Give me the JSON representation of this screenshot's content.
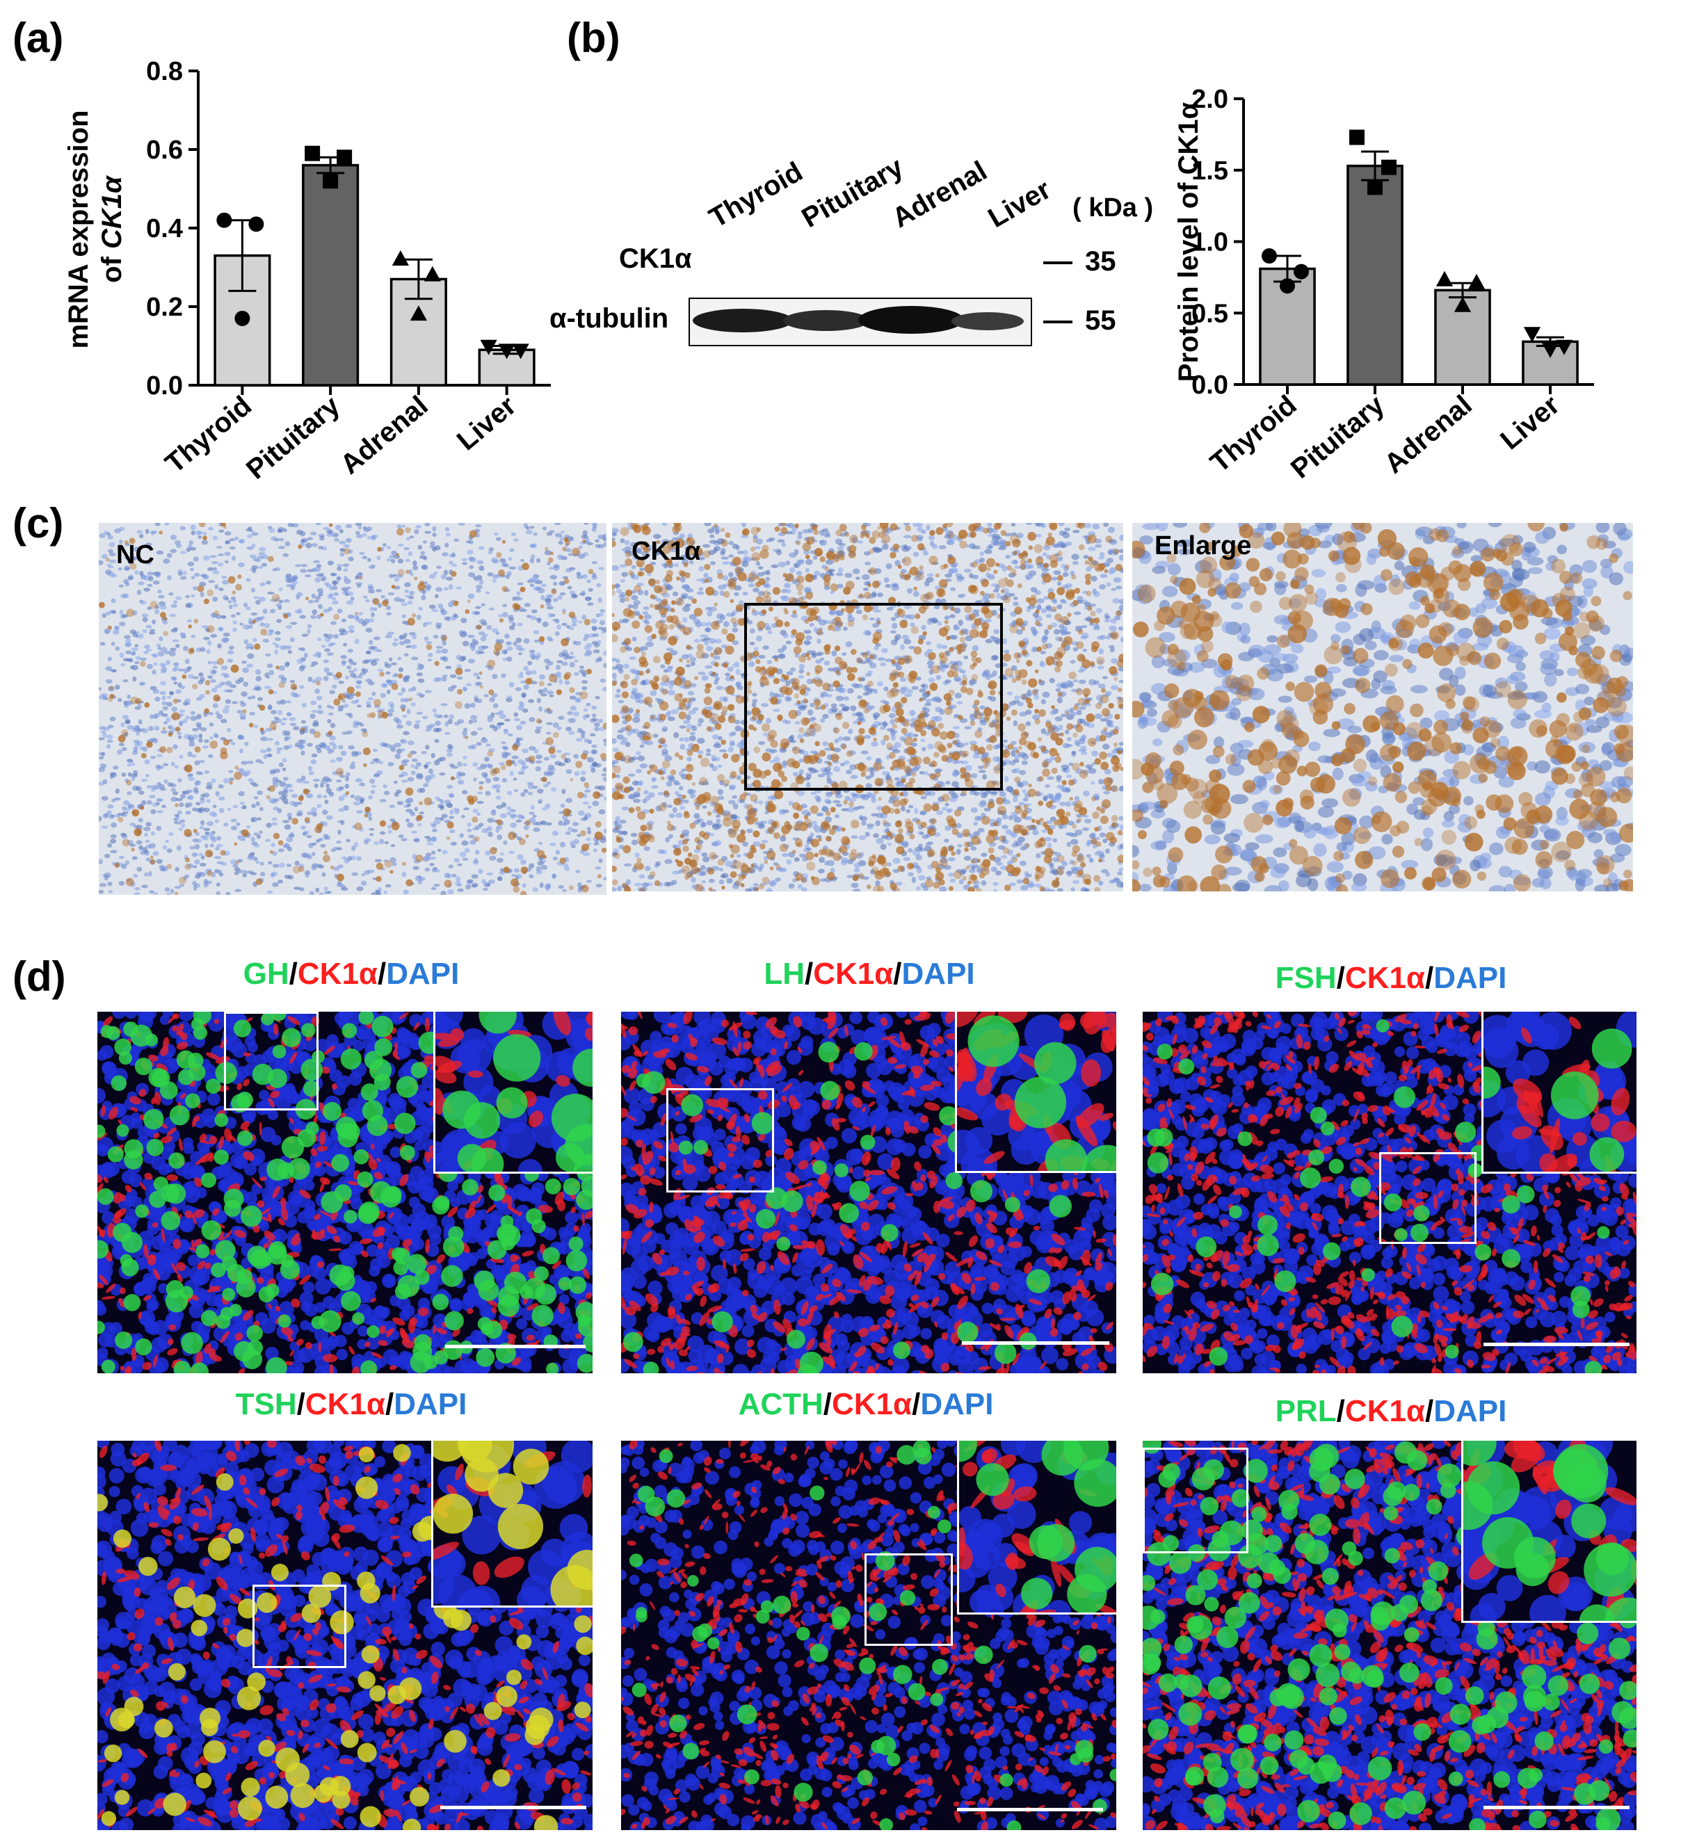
{
  "panels": {
    "a": {
      "letter": "(a)",
      "chart_data": {
        "type": "bar",
        "categories": [
          "Thyroid",
          "Pituitary",
          "Adrenal",
          "Liver"
        ],
        "values": [
          0.33,
          0.56,
          0.27,
          0.09
        ],
        "errors": [
          0.09,
          0.02,
          0.05,
          0.01
        ],
        "points": [
          [
            0.42,
            0.41,
            0.17
          ],
          [
            0.59,
            0.58,
            0.52
          ],
          [
            0.32,
            0.28,
            0.18
          ],
          [
            0.1,
            0.09,
            0.09
          ]
        ],
        "point_markers": [
          "circle",
          "square",
          "triangle",
          "triangle-down"
        ],
        "bar_colors": [
          "#d3d3d3",
          "#636363",
          "#d3d3d3",
          "#d3d3d3"
        ],
        "ylabel_line1": "mRNA expression",
        "ylabel_line2_prefix": "of ",
        "ylabel_line2_italic": "CK1α",
        "ylim": [
          0,
          0.8
        ],
        "yticks": [
          "0.0",
          "0.2",
          "0.4",
          "0.6",
          "0.8"
        ],
        "grid": false
      }
    },
    "b": {
      "letter": "(b)",
      "blot": {
        "lanes": [
          "Thyroid",
          "Pituitary",
          "Adrenal",
          "Liver"
        ],
        "unit": "( kDa )",
        "rows": [
          {
            "label": "CK1α",
            "marker": "35"
          },
          {
            "label": "α-tubulin",
            "marker": "55"
          }
        ]
      },
      "chart_data": {
        "type": "bar",
        "categories": [
          "Thyroid",
          "Pituitary",
          "Adrenal",
          "Liver"
        ],
        "values": [
          0.81,
          1.53,
          0.66,
          0.3
        ],
        "errors": [
          0.09,
          0.1,
          0.05,
          0.03
        ],
        "points": [
          [
            0.9,
            0.79,
            0.69
          ],
          [
            1.73,
            1.52,
            1.38
          ],
          [
            0.73,
            0.71,
            0.55
          ],
          [
            0.36,
            0.27,
            0.25
          ]
        ],
        "point_markers": [
          "circle",
          "square",
          "triangle",
          "triangle-down"
        ],
        "bar_colors": [
          "#b4b4b4",
          "#636363",
          "#b4b4b4",
          "#b4b4b4"
        ],
        "ylabel": "Protein level of CK1α",
        "ylim": [
          0,
          2.0
        ],
        "yticks": [
          "0.0",
          "0.5",
          "1.0",
          "1.5",
          "2.0"
        ],
        "grid": false
      }
    },
    "c": {
      "letter": "(c)",
      "images": [
        {
          "label": "NC"
        },
        {
          "label": "CK1α"
        },
        {
          "label": "Enlarge"
        }
      ]
    },
    "d": {
      "letter": "(d)",
      "separator": "/",
      "images": [
        {
          "marker": "GH",
          "target": "CK1α",
          "stain": "DAPI"
        },
        {
          "marker": "LH",
          "target": "CK1α",
          "stain": "DAPI"
        },
        {
          "marker": "FSH",
          "target": "CK1α",
          "stain": "DAPI"
        },
        {
          "marker": "TSH",
          "target": "CK1α",
          "stain": "DAPI"
        },
        {
          "marker": "ACTH",
          "target": "CK1α",
          "stain": "DAPI"
        },
        {
          "marker": "PRL",
          "target": "CK1α",
          "stain": "DAPI"
        }
      ]
    }
  },
  "colors": {
    "ihc_bg": "#dfe4ec",
    "ihc_brown": "#b5722f",
    "if_bg": "#05041a",
    "if_green": "#2fd34a",
    "if_red": "#e8202a",
    "if_blue": "#1f2fd8"
  }
}
